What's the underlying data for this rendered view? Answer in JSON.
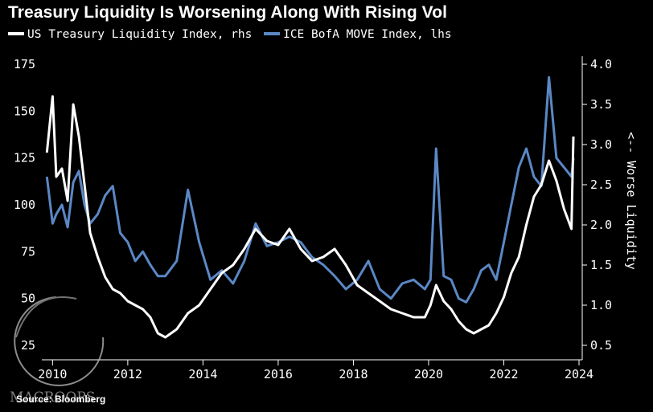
{
  "chart_data": {
    "type": "line",
    "title": "Treasury Liquidity Is Worsening Along With Rising Vol",
    "source": "Source: Bloomberg",
    "watermark": "MACROOPS",
    "ylabel_right": "<-- Worse Liquidity",
    "x_ticks": [
      "2010",
      "2012",
      "2014",
      "2016",
      "2018",
      "2020",
      "2022",
      "2024"
    ],
    "xlim": [
      2009.8,
      2024.0
    ],
    "y_left": {
      "ticks": [
        "25",
        "50",
        "75",
        "100",
        "125",
        "150",
        "175"
      ],
      "range": [
        25,
        175
      ]
    },
    "y_right": {
      "ticks": [
        "0.5",
        "1.0",
        "1.5",
        "2.0",
        "2.5",
        "3.0",
        "3.5",
        "4.0"
      ],
      "range": [
        0.5,
        4.0
      ]
    },
    "series": [
      {
        "name": "US Treasury Liquidity Index, rhs",
        "axis": "right",
        "color": "#ffffff",
        "x": [
          2009.85,
          2010.0,
          2010.1,
          2010.25,
          2010.4,
          2010.55,
          2010.7,
          2010.85,
          2011.0,
          2011.2,
          2011.4,
          2011.6,
          2011.8,
          2012.0,
          2012.2,
          2012.4,
          2012.6,
          2012.8,
          2013.0,
          2013.3,
          2013.6,
          2013.9,
          2014.2,
          2014.5,
          2014.8,
          2015.1,
          2015.4,
          2015.7,
          2016.0,
          2016.3,
          2016.6,
          2016.9,
          2017.2,
          2017.5,
          2017.8,
          2018.1,
          2018.4,
          2018.7,
          2019.0,
          2019.3,
          2019.6,
          2019.9,
          2020.05,
          2020.2,
          2020.4,
          2020.6,
          2020.8,
          2021.0,
          2021.2,
          2021.4,
          2021.6,
          2021.8,
          2022.0,
          2022.2,
          2022.4,
          2022.6,
          2022.8,
          2023.0,
          2023.2,
          2023.4,
          2023.6,
          2023.8,
          2023.85
        ],
        "values": [
          2.9,
          3.6,
          2.6,
          2.7,
          2.3,
          3.5,
          3.1,
          2.5,
          1.9,
          1.6,
          1.35,
          1.2,
          1.15,
          1.05,
          1.0,
          0.95,
          0.85,
          0.65,
          0.6,
          0.7,
          0.9,
          1.0,
          1.2,
          1.4,
          1.5,
          1.7,
          1.95,
          1.8,
          1.75,
          1.95,
          1.7,
          1.55,
          1.6,
          1.7,
          1.5,
          1.25,
          1.15,
          1.05,
          0.95,
          0.9,
          0.85,
          0.85,
          1.0,
          1.25,
          1.05,
          0.95,
          0.8,
          0.7,
          0.65,
          0.7,
          0.75,
          0.9,
          1.1,
          1.4,
          1.6,
          2.0,
          2.35,
          2.5,
          2.8,
          2.55,
          2.2,
          1.95,
          3.1
        ]
      },
      {
        "name": "ICE BofA MOVE Index, lhs",
        "axis": "left",
        "color": "#5b88c5",
        "x": [
          2009.85,
          2010.0,
          2010.1,
          2010.25,
          2010.4,
          2010.55,
          2010.7,
          2010.85,
          2011.0,
          2011.2,
          2011.4,
          2011.6,
          2011.8,
          2012.0,
          2012.2,
          2012.4,
          2012.6,
          2012.8,
          2013.0,
          2013.3,
          2013.6,
          2013.9,
          2014.2,
          2014.5,
          2014.8,
          2015.1,
          2015.4,
          2015.7,
          2016.0,
          2016.3,
          2016.6,
          2016.9,
          2017.2,
          2017.5,
          2017.8,
          2018.1,
          2018.4,
          2018.7,
          2019.0,
          2019.3,
          2019.6,
          2019.9,
          2020.05,
          2020.2,
          2020.4,
          2020.6,
          2020.8,
          2021.0,
          2021.2,
          2021.4,
          2021.6,
          2021.8,
          2022.0,
          2022.2,
          2022.4,
          2022.6,
          2022.8,
          2023.0,
          2023.2,
          2023.4,
          2023.6,
          2023.8,
          2023.85
        ],
        "values": [
          115,
          90,
          95,
          100,
          88,
          112,
          118,
          100,
          90,
          95,
          105,
          110,
          85,
          80,
          70,
          75,
          68,
          62,
          62,
          70,
          108,
          80,
          60,
          65,
          58,
          70,
          90,
          78,
          80,
          83,
          80,
          72,
          68,
          62,
          55,
          60,
          70,
          55,
          50,
          58,
          60,
          55,
          60,
          130,
          62,
          60,
          50,
          48,
          55,
          65,
          68,
          60,
          80,
          100,
          120,
          130,
          115,
          110,
          168,
          125,
          120,
          115,
          125
        ]
      }
    ]
  }
}
